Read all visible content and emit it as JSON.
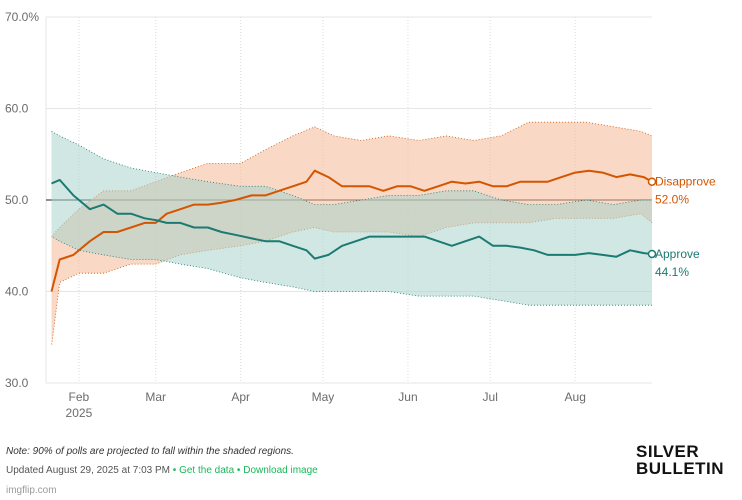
{
  "chart_data": {
    "type": "line",
    "title": "",
    "xlabel": "",
    "ylabel": "",
    "ylim": [
      30,
      70
    ],
    "yticks": [
      {
        "value": 30,
        "label": "30.0"
      },
      {
        "value": 40,
        "label": "40.0"
      },
      {
        "value": 50,
        "label": "50.0"
      },
      {
        "value": 60,
        "label": "60.0"
      },
      {
        "value": 70,
        "label": "70.0%"
      }
    ],
    "xlim": [
      "2025-01-20",
      "2025-08-29"
    ],
    "xticks": [
      {
        "date": "2025-02-01",
        "label": "Feb",
        "sublabel": "2025"
      },
      {
        "date": "2025-03-01",
        "label": "Mar"
      },
      {
        "date": "2025-04-01",
        "label": "Apr"
      },
      {
        "date": "2025-05-01",
        "label": "May"
      },
      {
        "date": "2025-06-01",
        "label": "Jun"
      },
      {
        "date": "2025-07-01",
        "label": "Jul"
      },
      {
        "date": "2025-08-01",
        "label": "Aug"
      }
    ],
    "reference_line": 50,
    "grid": "vertical dotted, horizontal solid",
    "shaded_band_note": "90% of polls projected to fall within shaded regions",
    "series": [
      {
        "name": "Disapprove",
        "color": "#d45500",
        "band_color": "#f4b896",
        "final_label": "52.0%",
        "x": [
          "2025-01-22",
          "2025-01-25",
          "2025-01-30",
          "2025-02-05",
          "2025-02-10",
          "2025-02-15",
          "2025-02-20",
          "2025-02-25",
          "2025-03-01",
          "2025-03-05",
          "2025-03-10",
          "2025-03-15",
          "2025-03-20",
          "2025-03-25",
          "2025-03-30",
          "2025-04-05",
          "2025-04-10",
          "2025-04-15",
          "2025-04-20",
          "2025-04-25",
          "2025-04-28",
          "2025-05-03",
          "2025-05-08",
          "2025-05-13",
          "2025-05-18",
          "2025-05-23",
          "2025-05-28",
          "2025-06-02",
          "2025-06-07",
          "2025-06-12",
          "2025-06-17",
          "2025-06-22",
          "2025-06-27",
          "2025-07-02",
          "2025-07-07",
          "2025-07-12",
          "2025-07-17",
          "2025-07-22",
          "2025-07-27",
          "2025-08-01",
          "2025-08-06",
          "2025-08-11",
          "2025-08-16",
          "2025-08-21",
          "2025-08-26",
          "2025-08-29"
        ],
        "y": [
          40.0,
          43.5,
          44.0,
          45.5,
          46.5,
          46.5,
          47.0,
          47.5,
          47.5,
          48.5,
          49.0,
          49.5,
          49.5,
          49.7,
          50.0,
          50.5,
          50.5,
          51.0,
          51.5,
          52.0,
          53.2,
          52.5,
          51.5,
          51.5,
          51.5,
          51.0,
          51.5,
          51.5,
          51.0,
          51.5,
          52.0,
          51.8,
          52.0,
          51.5,
          51.5,
          52.0,
          52.0,
          52.0,
          52.5,
          53.0,
          53.2,
          53.0,
          52.5,
          52.8,
          52.5,
          52.0
        ]
      },
      {
        "name": "Approve",
        "color": "#1b7a72",
        "band_color": "#a9d3cc",
        "final_label": "44.1%",
        "x": [
          "2025-01-22",
          "2025-01-25",
          "2025-01-30",
          "2025-02-05",
          "2025-02-10",
          "2025-02-15",
          "2025-02-20",
          "2025-02-25",
          "2025-03-01",
          "2025-03-05",
          "2025-03-10",
          "2025-03-15",
          "2025-03-20",
          "2025-03-25",
          "2025-03-30",
          "2025-04-05",
          "2025-04-10",
          "2025-04-15",
          "2025-04-20",
          "2025-04-25",
          "2025-04-28",
          "2025-05-03",
          "2025-05-08",
          "2025-05-13",
          "2025-05-18",
          "2025-05-23",
          "2025-05-28",
          "2025-06-02",
          "2025-06-07",
          "2025-06-12",
          "2025-06-17",
          "2025-06-22",
          "2025-06-27",
          "2025-07-02",
          "2025-07-07",
          "2025-07-12",
          "2025-07-17",
          "2025-07-22",
          "2025-07-27",
          "2025-08-01",
          "2025-08-06",
          "2025-08-11",
          "2025-08-16",
          "2025-08-21",
          "2025-08-26",
          "2025-08-29"
        ],
        "y": [
          51.8,
          52.2,
          50.5,
          49.0,
          49.5,
          48.5,
          48.5,
          48.0,
          47.8,
          47.5,
          47.5,
          47.0,
          47.0,
          46.5,
          46.2,
          45.8,
          45.5,
          45.5,
          45.0,
          44.5,
          43.6,
          44.0,
          45.0,
          45.5,
          46.0,
          46.0,
          46.0,
          46.0,
          46.0,
          45.5,
          45.0,
          45.5,
          46.0,
          45.0,
          45.0,
          44.8,
          44.5,
          44.0,
          44.0,
          44.0,
          44.2,
          44.0,
          43.8,
          44.5,
          44.2,
          44.1
        ]
      }
    ],
    "bands": [
      {
        "name": "Disapprove",
        "x": [
          "2025-01-22",
          "2025-01-25",
          "2025-02-01",
          "2025-02-10",
          "2025-02-20",
          "2025-03-01",
          "2025-03-10",
          "2025-03-20",
          "2025-04-01",
          "2025-04-10",
          "2025-04-20",
          "2025-04-28",
          "2025-05-05",
          "2025-05-15",
          "2025-05-25",
          "2025-06-05",
          "2025-06-15",
          "2025-06-25",
          "2025-07-05",
          "2025-07-15",
          "2025-07-25",
          "2025-08-05",
          "2025-08-15",
          "2025-08-25",
          "2025-08-29"
        ],
        "upper": [
          46,
          47,
          49,
          51,
          51,
          52,
          53,
          54,
          54,
          55.5,
          57,
          58,
          57,
          56.5,
          57,
          56.5,
          57,
          56.5,
          57,
          58.5,
          58.5,
          58.5,
          58,
          57.5,
          57
        ],
        "lower": [
          34,
          41,
          42,
          42,
          43,
          43,
          44,
          44.5,
          45,
          45.5,
          46.5,
          47,
          46.5,
          46.5,
          46.5,
          46,
          47,
          47.5,
          47.5,
          47.5,
          48,
          48,
          48,
          48.5,
          47.5
        ]
      },
      {
        "name": "Approve",
        "x": [
          "2025-01-22",
          "2025-01-25",
          "2025-02-01",
          "2025-02-10",
          "2025-02-20",
          "2025-03-01",
          "2025-03-10",
          "2025-03-20",
          "2025-04-01",
          "2025-04-10",
          "2025-04-20",
          "2025-04-28",
          "2025-05-05",
          "2025-05-15",
          "2025-05-25",
          "2025-06-05",
          "2025-06-15",
          "2025-06-25",
          "2025-07-05",
          "2025-07-15",
          "2025-07-25",
          "2025-08-05",
          "2025-08-15",
          "2025-08-25",
          "2025-08-29"
        ],
        "upper": [
          57.5,
          57,
          56,
          54.5,
          53.5,
          53,
          52.5,
          52,
          51.5,
          51.5,
          50.5,
          49.5,
          49.5,
          50,
          50.5,
          50.5,
          51,
          51,
          50,
          49.5,
          49.5,
          50,
          49.5,
          50,
          50
        ],
        "lower": [
          46,
          45.5,
          44.5,
          44,
          43.5,
          43.5,
          43,
          42.5,
          41.5,
          41,
          40.5,
          40,
          40,
          40,
          40,
          39.5,
          39.5,
          39.5,
          39,
          38.5,
          38.5,
          38.5,
          38.5,
          38.5,
          38.5
        ]
      }
    ]
  },
  "footer": {
    "note": "Note: 90% of polls are projected to fall within the shaded regions.",
    "updated": "Updated August 29, 2025 at 7:03 PM",
    "bullet": "•",
    "get_data": "Get the data",
    "download": "Download image",
    "link_color": "#18b85a"
  },
  "logo": {
    "line1": "SILVER",
    "line2": "BULLETIN"
  },
  "watermark": "imgflip.com"
}
